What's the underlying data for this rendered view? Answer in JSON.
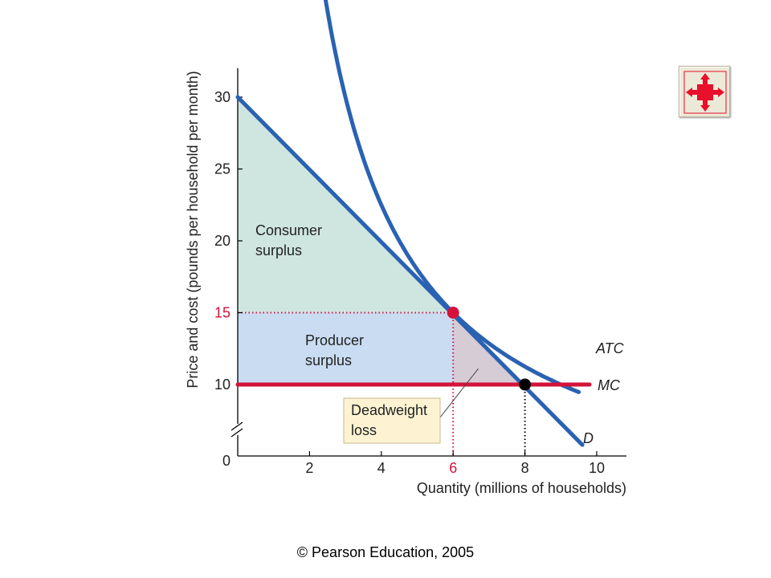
{
  "chart_data": {
    "type": "line",
    "xlabel": "Quantity (millions of households)",
    "ylabel": "Price and cost (pounds per household per month)",
    "xlim": [
      0,
      10.4
    ],
    "ylim": [
      5,
      31.5
    ],
    "x_axis_break": false,
    "y_axis_break": true,
    "x_ticks": [
      2,
      4,
      6,
      8,
      10
    ],
    "y_ticks": [
      10,
      15,
      20,
      25,
      30
    ],
    "origin_label": "0",
    "highlight_x_tick": 6,
    "highlight_y_tick": 15,
    "series": [
      {
        "name": "D",
        "kind": "demand",
        "color": "#2a62b3",
        "points": [
          [
            0,
            30
          ],
          [
            9.6,
            5.8
          ]
        ]
      },
      {
        "name": "ATC",
        "kind": "average-total-cost",
        "color": "#2a62b3",
        "constant": 90,
        "x_range": [
          1.35,
          9.5
        ]
      },
      {
        "name": "MC",
        "kind": "marginal-cost",
        "color": "#d4123a",
        "points": [
          [
            0,
            10
          ],
          [
            9.8,
            10
          ]
        ]
      }
    ],
    "regions": [
      {
        "id": "consumer",
        "label_lines": [
          "Consumer",
          "surplus"
        ],
        "color": "#cfe6e0",
        "polygon": [
          [
            0,
            30
          ],
          [
            0,
            15
          ],
          [
            6,
            15
          ]
        ]
      },
      {
        "id": "producer",
        "label_lines": [
          "Producer",
          "surplus"
        ],
        "color": "#c9dcf2",
        "polygon": [
          [
            0,
            15
          ],
          [
            0,
            10
          ],
          [
            6,
            10
          ],
          [
            6,
            15
          ]
        ]
      },
      {
        "id": "deadweight",
        "label_lines": [
          "Deadweight",
          "loss"
        ],
        "color": "#d6ccd6",
        "polygon": [
          [
            6,
            15
          ],
          [
            6,
            10
          ],
          [
            8,
            10
          ]
        ]
      }
    ],
    "points": [
      {
        "x": 6,
        "y": 15,
        "color": "#d4123a"
      },
      {
        "x": 8,
        "y": 10,
        "color": "#000000"
      }
    ],
    "guide_lines": [
      {
        "from": [
          0,
          15
        ],
        "to": [
          6,
          15
        ],
        "color": "#d4123a"
      },
      {
        "from": [
          6,
          15
        ],
        "to": [
          6,
          5
        ],
        "color": "#d4123a"
      },
      {
        "from": [
          8,
          10
        ],
        "to": [
          8,
          5
        ],
        "color": "#000000"
      }
    ],
    "callout": {
      "target": [
        6.7,
        11.1
      ],
      "fill": "#fdf3d3",
      "border": "#c8b98a"
    }
  },
  "ui": {
    "expand_icon": "expand-arrows-icon",
    "expand_icon_color": "#e8102a"
  },
  "footer": {
    "copyright": "© Pearson Education, 2005"
  }
}
